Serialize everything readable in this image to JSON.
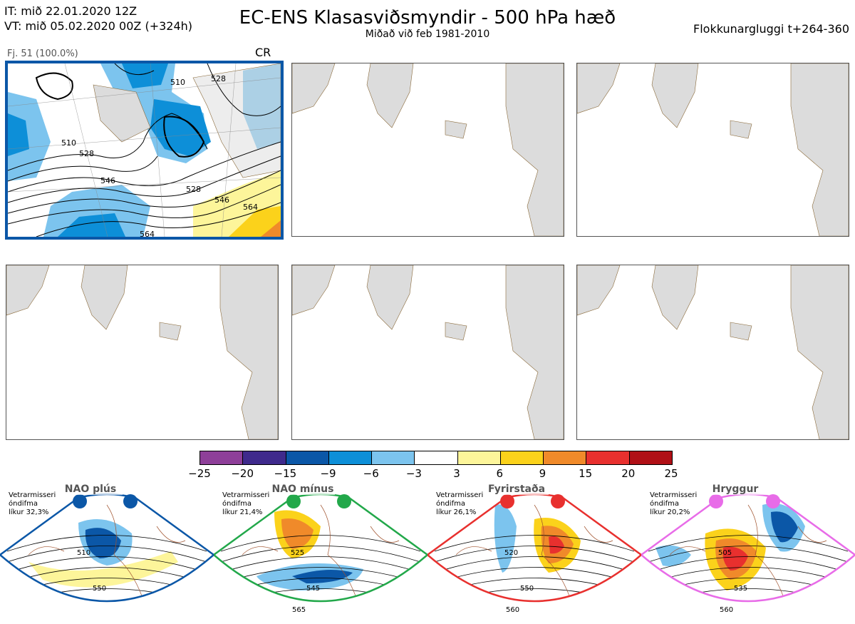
{
  "header": {
    "it_line": "IT: mið 22.01.2020 12Z",
    "vt_line": "VT: mið 05.02.2020 00Z  (+324h)",
    "title": "EC-ENS Klasasviðsmyndir - 500 hPa hæð",
    "subtitle": "Miðað við feb 1981-2010",
    "window": "Flokkunargluggi t+264-360"
  },
  "panels": [
    {
      "label": "Fj. 51 (100.0%)",
      "code": "CR",
      "selected": true
    },
    {
      "label": "",
      "code": "",
      "selected": false
    },
    {
      "label": "",
      "code": "",
      "selected": false
    },
    {
      "label": "",
      "code": "",
      "selected": false
    },
    {
      "label": "",
      "code": "",
      "selected": false
    },
    {
      "label": "",
      "code": "",
      "selected": false
    }
  ],
  "contour_labels": [
    "510",
    "528",
    "546",
    "564",
    "528",
    "546",
    "510",
    "528",
    "564"
  ],
  "chart_data": {
    "type": "heatmap",
    "title": "EC-ENS Klasasviðsmyndir - 500 hPa hæð",
    "colorbar": {
      "ticks": [
        -25,
        -20,
        -15,
        -9,
        -6,
        -3,
        3,
        6,
        9,
        15,
        20,
        25
      ],
      "colors": [
        "#8e3f99",
        "#3f2a8c",
        "#0b57a7",
        "#0d8fd8",
        "#7cc4ee",
        "#ffffff",
        "#fdf59a",
        "#fbd21b",
        "#f08a2a",
        "#e8302e",
        "#b01016"
      ]
    },
    "regimes": [
      {
        "name": "NAO plús",
        "season": "Vetrarmisseri",
        "note": "óndifma",
        "prob": "líkur 32,3%",
        "color": "#0b57a7",
        "labels": [
          "510",
          "550"
        ]
      },
      {
        "name": "NAO mínus",
        "season": "Vetrarmisseri",
        "note": "óndifma",
        "prob": "líkur 21,4%",
        "color": "#22a84a",
        "labels": [
          "525",
          "545",
          "565"
        ]
      },
      {
        "name": "Fyrirstaða",
        "season": "Vetrarmisseri",
        "note": "óndifma",
        "prob": "líkur 26,1%",
        "color": "#e8302e",
        "labels": [
          "520",
          "550",
          "560"
        ]
      },
      {
        "name": "Hryggur",
        "season": "Vetrarmisseri",
        "note": "óndifma",
        "prob": "líkur 20,2%",
        "color": "#e86ce8",
        "labels": [
          "505",
          "535",
          "560"
        ]
      }
    ]
  }
}
